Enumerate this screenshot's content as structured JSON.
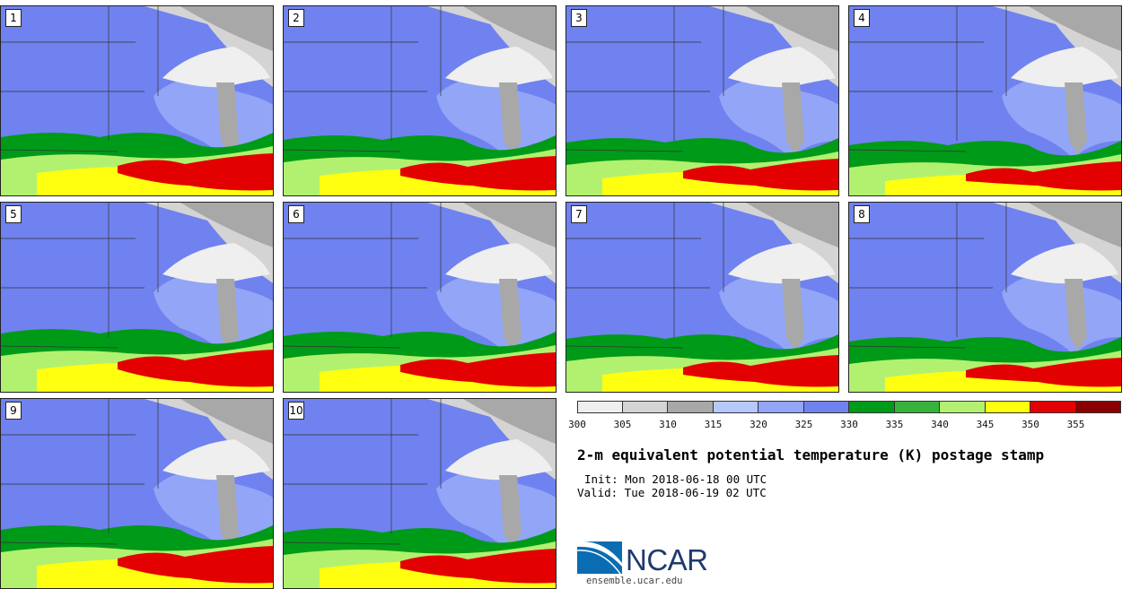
{
  "panels": [
    {
      "label": "1"
    },
    {
      "label": "2"
    },
    {
      "label": "3"
    },
    {
      "label": "4"
    },
    {
      "label": "5"
    },
    {
      "label": "6"
    },
    {
      "label": "7"
    },
    {
      "label": "8"
    },
    {
      "label": "9"
    },
    {
      "label": "10"
    }
  ],
  "colorbar": {
    "ticks": [
      "300",
      "305",
      "310",
      "315",
      "320",
      "325",
      "330",
      "335",
      "340",
      "345",
      "350",
      "355"
    ],
    "colors": [
      "#efefef",
      "#d4d4d4",
      "#a8a8a8",
      "#b7c8fb",
      "#92a5f7",
      "#6f82ef",
      "#009a19",
      "#37b33c",
      "#b1f16f",
      "#ffff0f",
      "#e30000",
      "#8b0000"
    ]
  },
  "title": "2-m equivalent potential temperature (K) postage stamp",
  "init": "Init: Mon 2018-06-18 00 UTC",
  "valid": "Valid: Tue 2018-06-19 02 UTC",
  "logo": {
    "text": "NCAR",
    "url": "ensemble.ucar.edu"
  }
}
